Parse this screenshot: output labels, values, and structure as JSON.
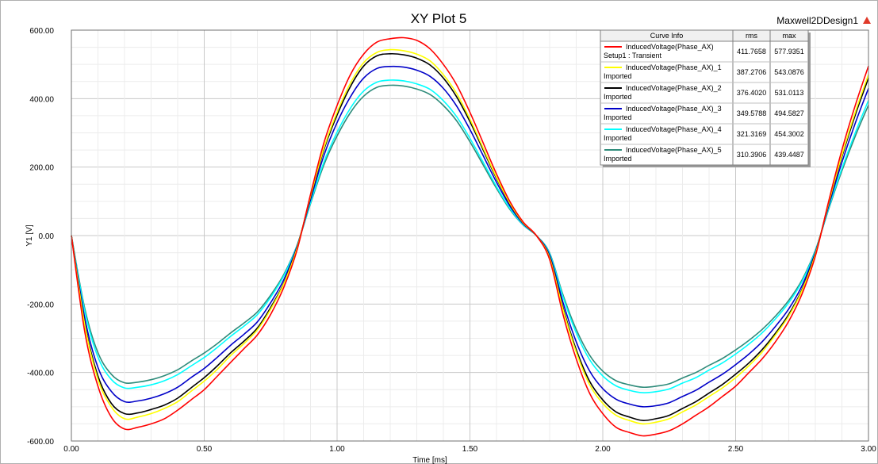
{
  "window": {
    "title": "XY Plot 5",
    "design_name": "Maxwell2DDesign1"
  },
  "legend": {
    "headers": [
      "Curve Info",
      "rms",
      "max"
    ],
    "rows": [
      {
        "line1": "InducedVoltage(Phase_AX)",
        "line2": "Setup1 : Transient",
        "rms": "411.7658",
        "max": "577.9351",
        "color": "#ff0000"
      },
      {
        "line1": "InducedVoltage(Phase_AX)_1",
        "line2": "Imported",
        "rms": "387.2706",
        "max": "543.0876",
        "color": "#ffff00"
      },
      {
        "line1": "InducedVoltage(Phase_AX)_2",
        "line2": "Imported",
        "rms": "376.4020",
        "max": "531.0113",
        "color": "#000000"
      },
      {
        "line1": "InducedVoltage(Phase_AX)_3",
        "line2": "Imported",
        "rms": "349.5788",
        "max": "494.5827",
        "color": "#0000c8"
      },
      {
        "line1": "InducedVoltage(Phase_AX)_4",
        "line2": "Imported",
        "rms": "321.3169",
        "max": "454.3002",
        "color": "#00ffff"
      },
      {
        "line1": "InducedVoltage(Phase_AX)_5",
        "line2": "Imported",
        "rms": "310.3906",
        "max": "439.4487",
        "color": "#2e8b7a"
      }
    ]
  },
  "chart_data": {
    "type": "line",
    "title": "XY Plot 5",
    "xlabel": "Time [ms]",
    "ylabel": "Y1 [V]",
    "xlim": [
      0,
      3
    ],
    "ylim": [
      -600,
      600
    ],
    "xticks": [
      "0.00",
      "0.50",
      "1.00",
      "1.50",
      "2.00",
      "2.50",
      "3.00"
    ],
    "yticks": [
      "600.00",
      "400.00",
      "200.00",
      "0.00",
      "-200.00",
      "-400.00",
      "-600.00"
    ],
    "grid": true,
    "legend_position": "top-right",
    "x": [
      0.0,
      0.05,
      0.1,
      0.15,
      0.2,
      0.25,
      0.3,
      0.35,
      0.4,
      0.45,
      0.5,
      0.55,
      0.6,
      0.65,
      0.7,
      0.75,
      0.8,
      0.85,
      0.9,
      0.95,
      1.0,
      1.05,
      1.1,
      1.15,
      1.2,
      1.25,
      1.3,
      1.35,
      1.4,
      1.45,
      1.5,
      1.55,
      1.6,
      1.65,
      1.7,
      1.75,
      1.8,
      1.85,
      1.9,
      1.95,
      2.0,
      2.05,
      2.1,
      2.15,
      2.2,
      2.25,
      2.3,
      2.35,
      2.4,
      2.45,
      2.5,
      2.55,
      2.6,
      2.65,
      2.7,
      2.75,
      2.8,
      2.85,
      2.9,
      2.95,
      3.0
    ],
    "series": [
      {
        "name": "InducedVoltage(Phase_AX) Setup1 : Transient",
        "color": "#ff0000",
        "values": [
          0,
          -280,
          -440,
          -530,
          -565,
          -560,
          -550,
          -535,
          -510,
          -480,
          -450,
          -410,
          -370,
          -330,
          -290,
          -230,
          -150,
          -40,
          120,
          270,
          380,
          470,
          530,
          565,
          575,
          578,
          570,
          545,
          500,
          440,
          360,
          270,
          180,
          100,
          40,
          0,
          -70,
          -230,
          -360,
          -460,
          -520,
          -560,
          -575,
          -585,
          -580,
          -570,
          -550,
          -525,
          -500,
          -470,
          -440,
          -400,
          -360,
          -310,
          -250,
          -170,
          -60,
          100,
          250,
          380,
          495
        ]
      },
      {
        "name": "InducedVoltage(Phase_AX)_1 Imported",
        "color": "#ffff00",
        "values": [
          0,
          -260,
          -420,
          -500,
          -535,
          -530,
          -520,
          -505,
          -485,
          -455,
          -425,
          -390,
          -350,
          -315,
          -275,
          -215,
          -140,
          -35,
          115,
          255,
          360,
          445,
          505,
          535,
          543,
          540,
          530,
          510,
          470,
          415,
          340,
          255,
          170,
          95,
          38,
          0,
          -65,
          -215,
          -340,
          -435,
          -490,
          -525,
          -540,
          -550,
          -545,
          -535,
          -515,
          -495,
          -470,
          -445,
          -415,
          -380,
          -340,
          -290,
          -235,
          -160,
          -55,
          95,
          235,
          360,
          470
        ]
      },
      {
        "name": "InducedVoltage(Phase_AX)_2 Imported",
        "color": "#000000",
        "values": [
          0,
          -255,
          -410,
          -490,
          -520,
          -518,
          -508,
          -495,
          -475,
          -445,
          -415,
          -380,
          -342,
          -308,
          -270,
          -210,
          -138,
          -33,
          112,
          250,
          352,
          435,
          495,
          525,
          531,
          528,
          518,
          498,
          460,
          405,
          333,
          250,
          167,
          93,
          37,
          0,
          -63,
          -210,
          -333,
          -425,
          -480,
          -515,
          -530,
          -540,
          -535,
          -525,
          -505,
          -485,
          -460,
          -435,
          -405,
          -372,
          -333,
          -285,
          -230,
          -157,
          -53,
          93,
          230,
          352,
          460
        ]
      },
      {
        "name": "InducedVoltage(Phase_AX)_3 Imported",
        "color": "#0000c8",
        "values": [
          0,
          -240,
          -385,
          -455,
          -485,
          -483,
          -475,
          -462,
          -443,
          -415,
          -388,
          -355,
          -320,
          -288,
          -252,
          -196,
          -128,
          -30,
          105,
          233,
          330,
          405,
          460,
          488,
          494,
          492,
          483,
          465,
          430,
          378,
          310,
          233,
          156,
          87,
          35,
          0,
          -58,
          -195,
          -310,
          -395,
          -447,
          -478,
          -492,
          -500,
          -497,
          -488,
          -470,
          -452,
          -428,
          -405,
          -377,
          -346,
          -310,
          -265,
          -214,
          -146,
          -49,
          87,
          214,
          328,
          430
        ]
      },
      {
        "name": "InducedVoltage(Phase_AX)_4 Imported",
        "color": "#00ffff",
        "values": [
          0,
          -220,
          -355,
          -420,
          -445,
          -443,
          -436,
          -424,
          -406,
          -381,
          -356,
          -326,
          -294,
          -264,
          -231,
          -180,
          -117,
          -28,
          96,
          214,
          302,
          372,
          422,
          448,
          454,
          452,
          443,
          427,
          394,
          347,
          284,
          214,
          143,
          80,
          32,
          0,
          -53,
          -179,
          -284,
          -362,
          -410,
          -439,
          -452,
          -459,
          -456,
          -448,
          -431,
          -415,
          -393,
          -372,
          -346,
          -317,
          -284,
          -243,
          -196,
          -134,
          -45,
          80,
          196,
          300,
          395
        ]
      },
      {
        "name": "InducedVoltage(Phase_AX)_5 Imported",
        "color": "#2e8b7a",
        "values": [
          0,
          -212,
          -342,
          -405,
          -430,
          -428,
          -421,
          -409,
          -392,
          -367,
          -343,
          -315,
          -284,
          -255,
          -223,
          -174,
          -113,
          -27,
          93,
          206,
          291,
          359,
          407,
          433,
          439,
          437,
          428,
          412,
          380,
          335,
          274,
          206,
          138,
          77,
          31,
          0,
          -51,
          -173,
          -274,
          -349,
          -396,
          -424,
          -436,
          -443,
          -440,
          -433,
          -416,
          -400,
          -379,
          -359,
          -334,
          -306,
          -274,
          -235,
          -189,
          -129,
          -43,
          77,
          189,
          290,
          381
        ]
      }
    ]
  }
}
